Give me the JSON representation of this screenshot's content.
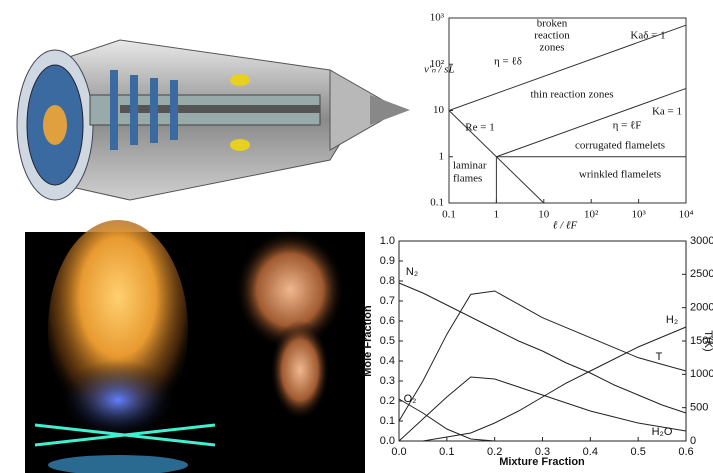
{
  "regime_diagram": {
    "x_label": "ℓ / ℓF",
    "y_label": "v'ₙ / sL",
    "log_scale": true,
    "xlim": [
      0.1,
      10000
    ],
    "ylim": [
      0.1,
      1000
    ],
    "xticks": [
      0.1,
      1,
      10,
      {
        "value": 100,
        "label": "10²"
      },
      {
        "value": 1000,
        "label": "10³"
      },
      {
        "value": 10000,
        "label": "10⁴"
      }
    ],
    "yticks": [
      0.1,
      1,
      10,
      {
        "value": 100,
        "label": "10²"
      },
      {
        "value": 1000,
        "label": "10³"
      }
    ],
    "lines": [
      {
        "x": [
          0.1,
          10000
        ],
        "y": [
          10,
          700
        ]
      },
      {
        "x": [
          1,
          10000
        ],
        "y": [
          1,
          30
        ]
      },
      {
        "x": [
          0.1,
          10
        ],
        "y": [
          10,
          0.1
        ]
      },
      {
        "x": [
          1,
          10000
        ],
        "y": [
          1,
          1
        ]
      },
      {
        "x": [
          1,
          1
        ],
        "y": [
          0.1,
          1
        ]
      }
    ],
    "region_labels": [
      "broken",
      "reaction",
      "zones",
      "thin reaction zones",
      "laminar",
      "flames",
      "corrugated flamelets",
      "wrinkled flamelets"
    ],
    "line_labels": [
      "Kaδ = 1",
      "η = ℓδ",
      "Re = 1",
      "Ka = 1",
      "η = ℓF"
    ]
  },
  "composition_plot": {
    "x_label": "Mixture Fraction",
    "y_label": "Mole Fraction",
    "y2_label": "T(K)",
    "xlim": [
      0,
      0.6
    ],
    "ylim": [
      0,
      1
    ],
    "y2lim": [
      0,
      3000
    ],
    "xticks": [
      {
        "value": 0,
        "label": "0.0"
      },
      0.1,
      0.2,
      0.3,
      0.4,
      0.5,
      0.6
    ],
    "yticks": [
      {
        "value": 0,
        "label": "0.0"
      },
      0.1,
      0.2,
      0.3,
      0.4,
      0.5,
      0.6,
      0.7,
      0.8,
      0.9,
      {
        "value": 1,
        "label": "1.0"
      }
    ],
    "y2ticks": [
      0,
      500,
      1000,
      1500,
      2000,
      2500,
      3000
    ],
    "x": [
      0,
      0.05,
      0.1,
      0.15,
      0.2,
      0.25,
      0.3,
      0.35,
      0.4,
      0.45,
      0.5,
      0.55,
      0.6
    ],
    "series": [
      {
        "name": "N₂",
        "color": "#222222",
        "values": [
          0.79,
          0.74,
          0.68,
          0.62,
          0.56,
          0.5,
          0.45,
          0.39,
          0.34,
          0.28,
          0.23,
          0.18,
          0.14
        ]
      },
      {
        "name": "H₂",
        "color": "#222222",
        "values": [
          0,
          0,
          0.02,
          0.04,
          0.09,
          0.15,
          0.22,
          0.29,
          0.35,
          0.41,
          0.47,
          0.52,
          0.57
        ]
      },
      {
        "name": "T",
        "color": "#222222",
        "axis": "y2",
        "values": [
          300,
          900,
          1600,
          2200,
          2250,
          2050,
          1850,
          1700,
          1550,
          1400,
          1250,
          1150,
          1050
        ]
      },
      {
        "name": "O₂",
        "color": "#222222",
        "values": [
          0.21,
          0.14,
          0.06,
          0.01,
          0,
          0,
          0,
          0,
          0,
          0,
          0,
          0,
          0
        ]
      },
      {
        "name": "H₂O",
        "color": "#222222",
        "values": [
          0,
          0.11,
          0.22,
          0.32,
          0.31,
          0.27,
          0.23,
          0.19,
          0.15,
          0.12,
          0.09,
          0.07,
          0.05
        ]
      }
    ]
  }
}
